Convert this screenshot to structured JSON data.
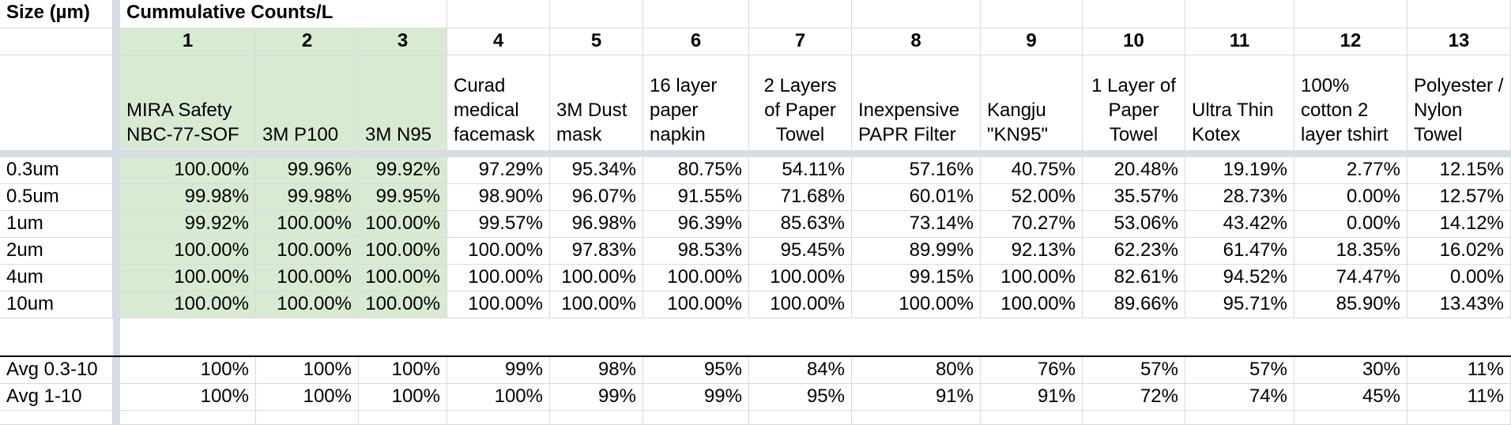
{
  "sheet": {
    "size_header": "Size (µm)",
    "group_header": "Cummulative Counts/L",
    "column_numbers": [
      "1",
      "2",
      "3",
      "4",
      "5",
      "6",
      "7",
      "8",
      "9",
      "10",
      "11",
      "12",
      "13"
    ],
    "column_names": [
      "MIRA Safety NBC-77-SOF",
      "3M P100",
      "3M N95",
      "Curad medical facemask",
      "3M Dust mask",
      "16 layer paper napkin",
      "2 Layers of Paper Towel",
      "Inexpensive PAPR Filter",
      "Kangju \"KN95\"",
      "1 Layer of Paper Towel",
      "Ultra Thin Kotex",
      "100% cotton 2 layer tshirt",
      "Polyester / Nylon Towel"
    ],
    "rows": [
      {
        "label": "0.3um",
        "values": [
          "100.00%",
          "99.96%",
          "99.92%",
          "97.29%",
          "95.34%",
          "80.75%",
          "54.11%",
          "57.16%",
          "40.75%",
          "20.48%",
          "19.19%",
          "2.77%",
          "12.15%"
        ]
      },
      {
        "label": "0.5um",
        "values": [
          "99.98%",
          "99.98%",
          "99.95%",
          "98.90%",
          "96.07%",
          "91.55%",
          "71.68%",
          "60.01%",
          "52.00%",
          "35.57%",
          "28.73%",
          "0.00%",
          "12.57%"
        ]
      },
      {
        "label": "1um",
        "values": [
          "99.92%",
          "100.00%",
          "100.00%",
          "99.57%",
          "96.98%",
          "96.39%",
          "85.63%",
          "73.14%",
          "70.27%",
          "53.06%",
          "43.42%",
          "0.00%",
          "14.12%"
        ]
      },
      {
        "label": "2um",
        "values": [
          "100.00%",
          "100.00%",
          "100.00%",
          "100.00%",
          "97.83%",
          "98.53%",
          "95.45%",
          "89.99%",
          "92.13%",
          "62.23%",
          "61.47%",
          "18.35%",
          "16.02%"
        ]
      },
      {
        "label": "4um",
        "values": [
          "100.00%",
          "100.00%",
          "100.00%",
          "100.00%",
          "100.00%",
          "100.00%",
          "100.00%",
          "99.15%",
          "100.00%",
          "82.61%",
          "94.52%",
          "74.47%",
          "0.00%"
        ]
      },
      {
        "label": "10um",
        "values": [
          "100.00%",
          "100.00%",
          "100.00%",
          "100.00%",
          "100.00%",
          "100.00%",
          "100.00%",
          "100.00%",
          "100.00%",
          "89.66%",
          "95.71%",
          "85.90%",
          "13.43%"
        ]
      }
    ],
    "averages": [
      {
        "label": "Avg 0.3-10",
        "values": [
          "100%",
          "100%",
          "100%",
          "99%",
          "98%",
          "95%",
          "84%",
          "80%",
          "76%",
          "57%",
          "57%",
          "30%",
          "11%"
        ]
      },
      {
        "label": "Avg 1-10",
        "values": [
          "100%",
          "100%",
          "100%",
          "100%",
          "99%",
          "99%",
          "95%",
          "91%",
          "91%",
          "72%",
          "74%",
          "45%",
          "11%"
        ]
      }
    ],
    "highlight_color": "#d9ead3"
  }
}
